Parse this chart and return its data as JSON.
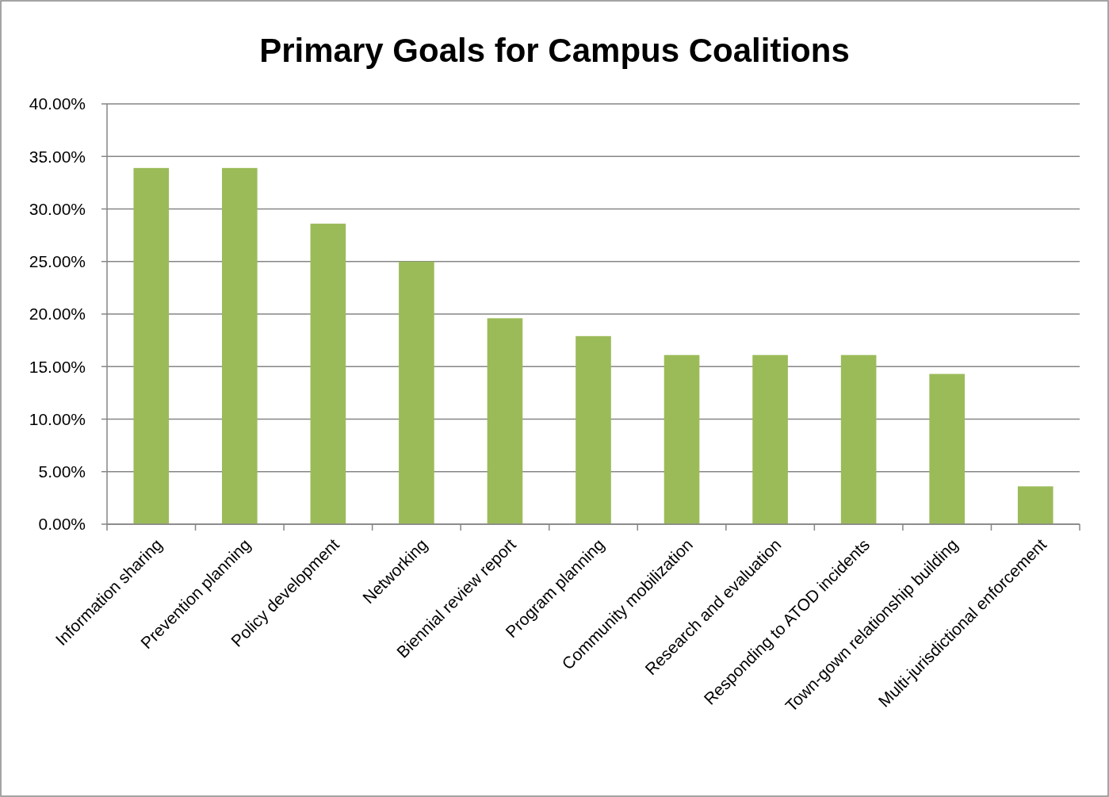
{
  "chart_data": {
    "type": "bar",
    "title": "Primary Goals for Campus Coalitions",
    "categories": [
      "Information sharing",
      "Prevention planning",
      "Policy development",
      "Networking",
      "Biennial review report",
      "Program planning",
      "Community mobilization",
      "Research and evaluation",
      "Responding to ATOD incidents",
      "Town-gown relationship building",
      "Multi-jurisdictional enforcement"
    ],
    "values": [
      33.9,
      33.9,
      28.6,
      25.0,
      19.6,
      17.9,
      16.1,
      16.1,
      16.1,
      14.3,
      3.6
    ],
    "color": "#9bbb59",
    "ylim": [
      0,
      40
    ],
    "yticks": [
      {
        "value": 0,
        "label": "0.00%"
      },
      {
        "value": 5,
        "label": "5.00%"
      },
      {
        "value": 10,
        "label": "10.00%"
      },
      {
        "value": 15,
        "label": "15.00%"
      },
      {
        "value": 20,
        "label": "20.00%"
      },
      {
        "value": 25,
        "label": "25.00%"
      },
      {
        "value": 30,
        "label": "30.00%"
      },
      {
        "value": 35,
        "label": "35.00%"
      },
      {
        "value": 40,
        "label": "40.00%"
      }
    ],
    "grid": "y"
  }
}
